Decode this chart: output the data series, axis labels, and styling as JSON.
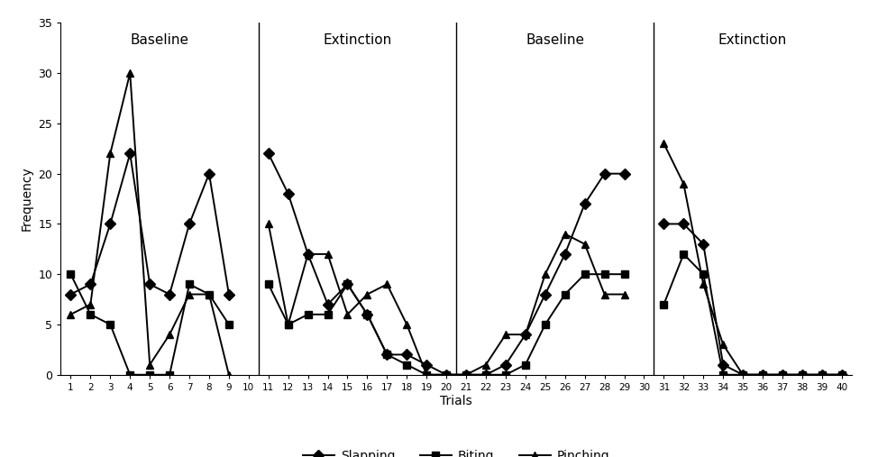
{
  "trials": [
    1,
    2,
    3,
    4,
    5,
    6,
    7,
    8,
    9,
    10,
    11,
    12,
    13,
    14,
    15,
    16,
    17,
    18,
    19,
    20,
    21,
    22,
    23,
    24,
    25,
    26,
    27,
    28,
    29,
    30,
    31,
    32,
    33,
    34,
    35,
    36,
    37,
    38,
    39,
    40
  ],
  "slapping": [
    8,
    9,
    15,
    22,
    9,
    8,
    15,
    20,
    8,
    null,
    22,
    18,
    12,
    7,
    9,
    6,
    2,
    2,
    1,
    0,
    0,
    0,
    1,
    4,
    8,
    12,
    17,
    20,
    20,
    null,
    15,
    15,
    13,
    1,
    0,
    0,
    0,
    0,
    0,
    0
  ],
  "biting": [
    10,
    6,
    5,
    0,
    0,
    0,
    9,
    8,
    5,
    null,
    9,
    5,
    6,
    6,
    9,
    6,
    2,
    1,
    0,
    0,
    0,
    0,
    0,
    1,
    5,
    8,
    10,
    10,
    10,
    null,
    7,
    12,
    10,
    0,
    0,
    0,
    0,
    0,
    0,
    0
  ],
  "pinching": [
    6,
    7,
    22,
    30,
    1,
    4,
    8,
    8,
    0,
    null,
    15,
    5,
    12,
    12,
    6,
    8,
    9,
    5,
    0,
    0,
    0,
    1,
    4,
    4,
    10,
    14,
    13,
    8,
    8,
    null,
    23,
    19,
    9,
    3,
    0,
    0,
    0,
    0,
    0,
    0
  ],
  "phase_lines": [
    10,
    20,
    30
  ],
  "phase_labels": [
    {
      "x": 5.5,
      "text": "Baseline"
    },
    {
      "x": 15.5,
      "text": "Extinction"
    },
    {
      "x": 25.5,
      "text": "Baseline"
    },
    {
      "x": 35.5,
      "text": "Extinction"
    }
  ],
  "ylabel": "Frequency",
  "xlabel": "Trials",
  "ylim": [
    0,
    35
  ],
  "xlim": [
    0.5,
    40.5
  ],
  "yticks": [
    0,
    5,
    10,
    15,
    20,
    25,
    30,
    35
  ],
  "legend_labels": [
    "Slapping",
    "Biting",
    "Pinching"
  ],
  "marker_slapping": "D",
  "marker_biting": "s",
  "marker_pinching": "^",
  "line_color": "#000000",
  "background_color": "#ffffff",
  "linewidth": 1.4,
  "markersize": 6
}
